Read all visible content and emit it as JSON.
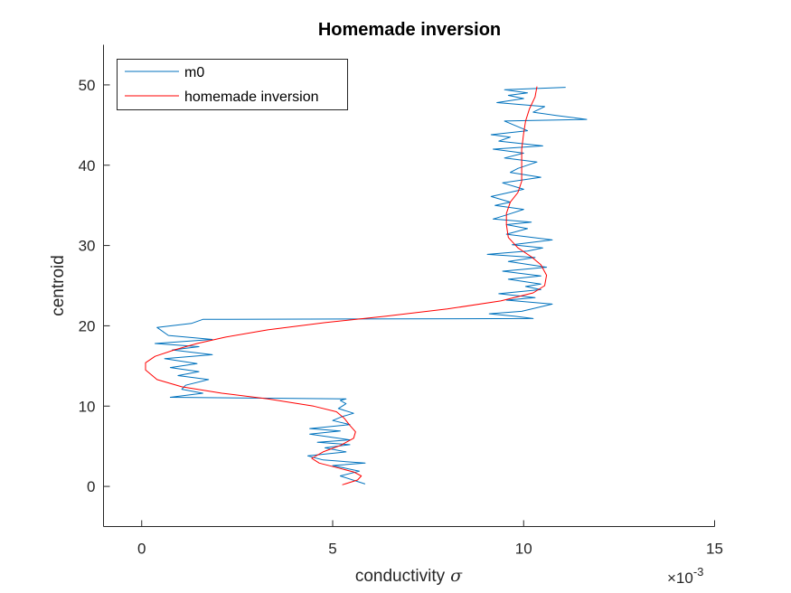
{
  "chart_data": {
    "type": "line",
    "title": "Homemade inversion",
    "xlabel_text": "conductivity",
    "xlabel_symbol": "σ",
    "ylabel": "centroid",
    "x_exponent_prefix": "×10",
    "x_exponent_power": "-3",
    "xlim": [
      -1,
      15
    ],
    "ylim": [
      -5,
      55
    ],
    "x_ticks": [
      0,
      5,
      10,
      15
    ],
    "y_ticks": [
      0,
      10,
      20,
      30,
      40,
      50
    ],
    "x_tick_labels": [
      "0",
      "5",
      "10",
      "15"
    ],
    "y_tick_labels": [
      "0",
      "10",
      "20",
      "30",
      "40",
      "50"
    ],
    "grid": false,
    "legend_position": "top-left",
    "series": [
      {
        "name": "m0",
        "color": "#0072BD",
        "points": [
          [
            5.85,
            0.3
          ],
          [
            5.2,
            1.3
          ],
          [
            5.7,
            1.9
          ],
          [
            5.0,
            2.6
          ],
          [
            5.85,
            2.9
          ],
          [
            4.75,
            3.3
          ],
          [
            4.35,
            3.8
          ],
          [
            5.35,
            4.3
          ],
          [
            4.8,
            4.8
          ],
          [
            5.45,
            5.2
          ],
          [
            4.6,
            5.5
          ],
          [
            5.45,
            5.8
          ],
          [
            4.4,
            6.5
          ],
          [
            5.2,
            6.9
          ],
          [
            4.4,
            7.2
          ],
          [
            5.45,
            7.7
          ],
          [
            5.0,
            8.2
          ],
          [
            5.25,
            8.7
          ],
          [
            5.55,
            9.1
          ],
          [
            5.15,
            9.7
          ],
          [
            5.35,
            10.3
          ],
          [
            5.2,
            10.7
          ],
          [
            5.35,
            10.9
          ],
          [
            0.75,
            11.1
          ],
          [
            1.6,
            11.6
          ],
          [
            1.05,
            12.1
          ],
          [
            1.15,
            12.6
          ],
          [
            1.75,
            13.3
          ],
          [
            0.95,
            13.8
          ],
          [
            1.5,
            14.3
          ],
          [
            0.75,
            14.8
          ],
          [
            1.45,
            15.3
          ],
          [
            0.6,
            15.9
          ],
          [
            1.85,
            16.4
          ],
          [
            0.8,
            17.0
          ],
          [
            1.5,
            17.4
          ],
          [
            0.35,
            17.8
          ],
          [
            1.85,
            18.3
          ],
          [
            0.7,
            18.8
          ],
          [
            0.4,
            19.8
          ],
          [
            1.3,
            20.3
          ],
          [
            1.6,
            20.8
          ],
          [
            10.25,
            20.9
          ],
          [
            9.75,
            21.2
          ],
          [
            9.1,
            21.5
          ],
          [
            9.95,
            21.8
          ],
          [
            10.75,
            22.7
          ],
          [
            9.55,
            23.2
          ],
          [
            10.3,
            23.5
          ],
          [
            9.35,
            24.0
          ],
          [
            10.45,
            24.5
          ],
          [
            10.05,
            24.9
          ],
          [
            10.45,
            25.2
          ],
          [
            9.6,
            25.8
          ],
          [
            10.45,
            26.2
          ],
          [
            9.45,
            26.8
          ],
          [
            10.6,
            27.3
          ],
          [
            9.6,
            28.0
          ],
          [
            10.3,
            28.5
          ],
          [
            9.05,
            28.9
          ],
          [
            10.1,
            29.3
          ],
          [
            10.5,
            29.7
          ],
          [
            9.7,
            30.1
          ],
          [
            10.75,
            30.7
          ],
          [
            9.55,
            31.4
          ],
          [
            10.1,
            32.1
          ],
          [
            9.55,
            32.6
          ],
          [
            10.2,
            32.9
          ],
          [
            9.2,
            33.3
          ],
          [
            9.55,
            33.8
          ],
          [
            10.0,
            34.5
          ],
          [
            9.25,
            35.0
          ],
          [
            9.65,
            35.4
          ],
          [
            9.15,
            36.1
          ],
          [
            10.0,
            37.0
          ],
          [
            9.45,
            37.8
          ],
          [
            10.45,
            38.5
          ],
          [
            9.65,
            39.1
          ],
          [
            9.85,
            39.6
          ],
          [
            10.35,
            40.4
          ],
          [
            9.5,
            40.9
          ],
          [
            10.0,
            41.5
          ],
          [
            9.2,
            42.0
          ],
          [
            10.5,
            42.4
          ],
          [
            9.35,
            43.0
          ],
          [
            9.65,
            43.5
          ],
          [
            9.15,
            43.8
          ],
          [
            10.1,
            44.3
          ],
          [
            9.5,
            45.5
          ],
          [
            11.65,
            45.7
          ],
          [
            10.85,
            46.2
          ],
          [
            10.25,
            46.6
          ],
          [
            10.55,
            47.3
          ],
          [
            9.3,
            47.8
          ],
          [
            10.0,
            48.3
          ],
          [
            9.6,
            48.7
          ],
          [
            10.1,
            49.0
          ],
          [
            9.5,
            49.4
          ],
          [
            11.1,
            49.7
          ]
        ]
      },
      {
        "name": "homemade inversion",
        "color": "#FF0000",
        "points": [
          [
            5.25,
            0.2
          ],
          [
            5.65,
            0.8
          ],
          [
            5.75,
            1.3
          ],
          [
            5.55,
            1.8
          ],
          [
            5.15,
            2.3
          ],
          [
            4.65,
            2.9
          ],
          [
            4.45,
            3.5
          ],
          [
            4.75,
            4.3
          ],
          [
            5.2,
            5.1
          ],
          [
            5.55,
            6.0
          ],
          [
            5.6,
            6.8
          ],
          [
            5.45,
            7.6
          ],
          [
            5.3,
            8.5
          ],
          [
            5.1,
            9.3
          ],
          [
            4.5,
            10.0
          ],
          [
            3.3,
            10.9
          ],
          [
            2.1,
            11.6
          ],
          [
            1.05,
            12.4
          ],
          [
            0.4,
            13.3
          ],
          [
            0.1,
            14.5
          ],
          [
            0.1,
            15.4
          ],
          [
            0.35,
            16.2
          ],
          [
            0.85,
            17.0
          ],
          [
            1.45,
            17.8
          ],
          [
            2.2,
            18.6
          ],
          [
            3.3,
            19.5
          ],
          [
            4.8,
            20.4
          ],
          [
            6.4,
            21.2
          ],
          [
            8.0,
            22.1
          ],
          [
            9.4,
            23.1
          ],
          [
            10.25,
            24.1
          ],
          [
            10.55,
            25.0
          ],
          [
            10.6,
            26.3
          ],
          [
            10.45,
            27.6
          ],
          [
            10.2,
            28.6
          ],
          [
            9.85,
            29.7
          ],
          [
            9.6,
            31.0
          ],
          [
            9.55,
            32.6
          ],
          [
            9.55,
            34.0
          ],
          [
            9.65,
            35.4
          ],
          [
            9.85,
            36.6
          ],
          [
            9.95,
            38.0
          ],
          [
            9.95,
            40.0
          ],
          [
            9.95,
            42.0
          ],
          [
            10.0,
            44.0
          ],
          [
            10.05,
            45.5
          ],
          [
            10.15,
            47.0
          ],
          [
            10.3,
            48.5
          ],
          [
            10.35,
            49.8
          ]
        ]
      }
    ]
  }
}
